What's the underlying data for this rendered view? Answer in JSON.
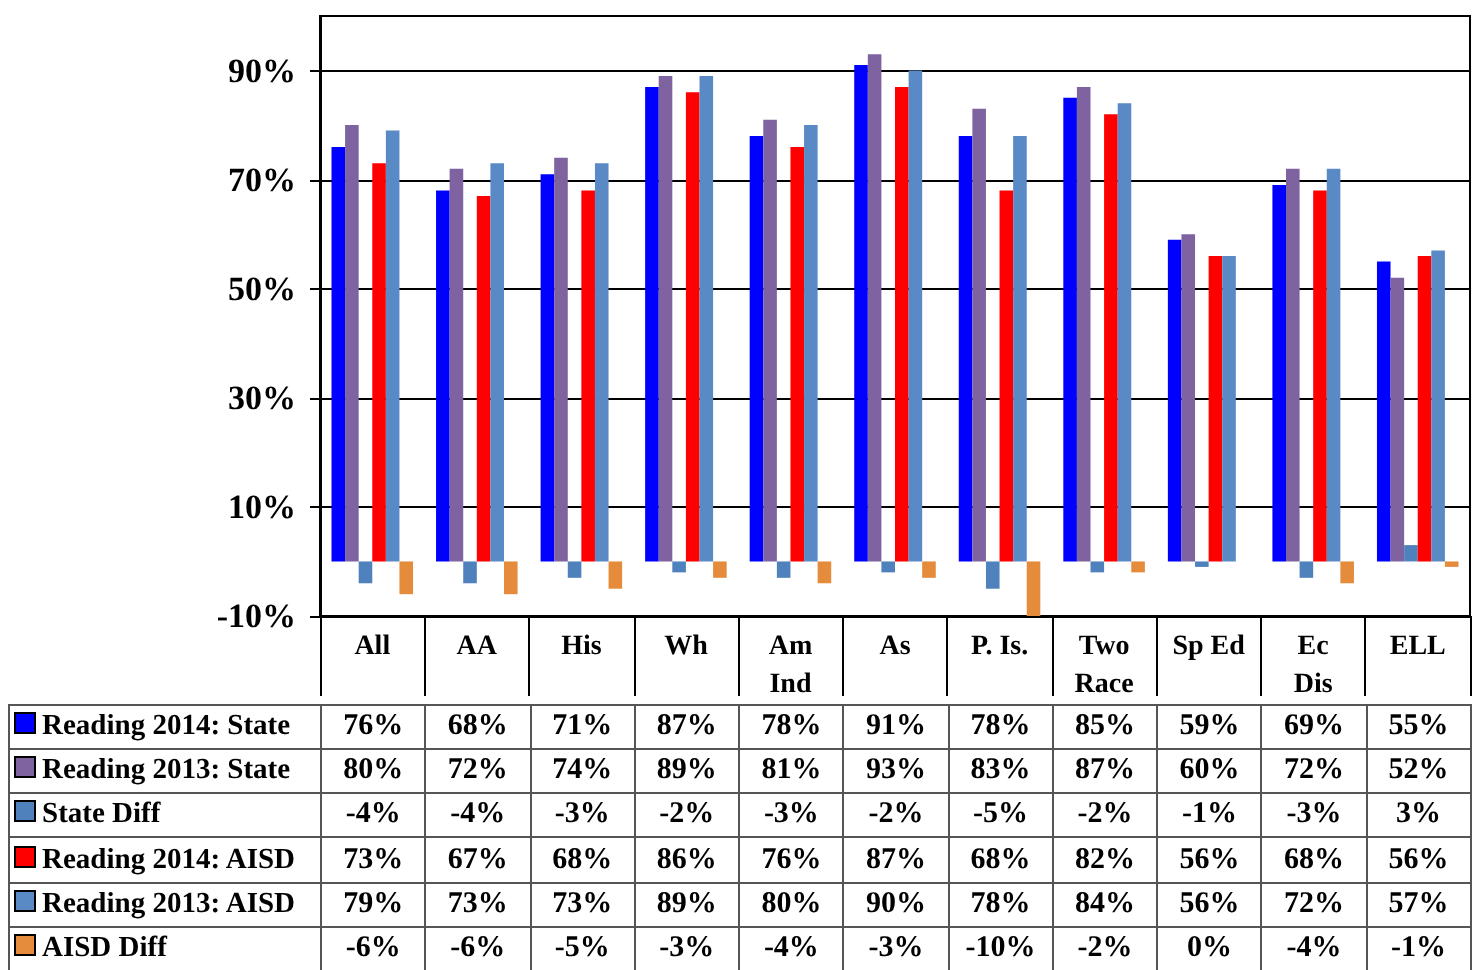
{
  "chart_data": {
    "type": "bar",
    "categories": [
      "All",
      "AA",
      "His",
      "Wh",
      "Am\nInd",
      "As",
      "P. Is.",
      "Two\nRace",
      "Sp Ed",
      "Ec\nDis",
      "ELL"
    ],
    "series": [
      {
        "name": "Reading 2014: State",
        "color": "#0000ff",
        "values": [
          76,
          68,
          71,
          87,
          78,
          91,
          78,
          85,
          59,
          69,
          55
        ],
        "value_labels": [
          "76%",
          "68%",
          "71%",
          "87%",
          "78%",
          "91%",
          "78%",
          "85%",
          "59%",
          "69%",
          "55%"
        ]
      },
      {
        "name": "Reading 2013: State",
        "color": "#7f62a0",
        "values": [
          80,
          72,
          74,
          89,
          81,
          93,
          83,
          87,
          60,
          72,
          52
        ],
        "value_labels": [
          "80%",
          "72%",
          "74%",
          "89%",
          "81%",
          "93%",
          "83%",
          "87%",
          "60%",
          "72%",
          "52%"
        ]
      },
      {
        "name": "State Diff",
        "color": "#4f81bd",
        "values": [
          -4,
          -4,
          -3,
          -2,
          -3,
          -2,
          -5,
          -2,
          -1,
          -3,
          3
        ],
        "value_labels": [
          "-4%",
          "-4%",
          "-3%",
          "-2%",
          "-3%",
          "-2%",
          "-5%",
          "-2%",
          "-1%",
          "-3%",
          "3%"
        ]
      },
      {
        "name": "Reading 2014: AISD",
        "color": "#ff0000",
        "values": [
          73,
          67,
          68,
          86,
          76,
          87,
          68,
          82,
          56,
          68,
          56
        ],
        "value_labels": [
          "73%",
          "67%",
          "68%",
          "86%",
          "76%",
          "87%",
          "68%",
          "82%",
          "56%",
          "68%",
          "56%"
        ]
      },
      {
        "name": "Reading 2013: AISD",
        "color": "#5a8ac6",
        "values": [
          79,
          73,
          73,
          89,
          80,
          90,
          78,
          84,
          56,
          72,
          57
        ],
        "value_labels": [
          "79%",
          "73%",
          "73%",
          "89%",
          "80%",
          "90%",
          "78%",
          "84%",
          "56%",
          "72%",
          "57%"
        ]
      },
      {
        "name": "AISD Diff",
        "color": "#e48c3c",
        "values": [
          -6,
          -6,
          -5,
          -3,
          -4,
          -3,
          -10,
          -2,
          0,
          -4,
          -1
        ],
        "value_labels": [
          "-6%",
          "-6%",
          "-5%",
          "-3%",
          "-4%",
          "-3%",
          "-10%",
          "-2%",
          "0%",
          "-4%",
          "-1%"
        ]
      }
    ],
    "ylim": [
      -10,
      100
    ],
    "yticks": [
      {
        "value": -10,
        "label": "-10%"
      },
      {
        "value": 10,
        "label": "10%"
      },
      {
        "value": 30,
        "label": "30%"
      },
      {
        "value": 50,
        "label": "50%"
      },
      {
        "value": 70,
        "label": "70%"
      },
      {
        "value": 90,
        "label": "90%"
      }
    ],
    "grid": "y",
    "legend": "bottom"
  }
}
